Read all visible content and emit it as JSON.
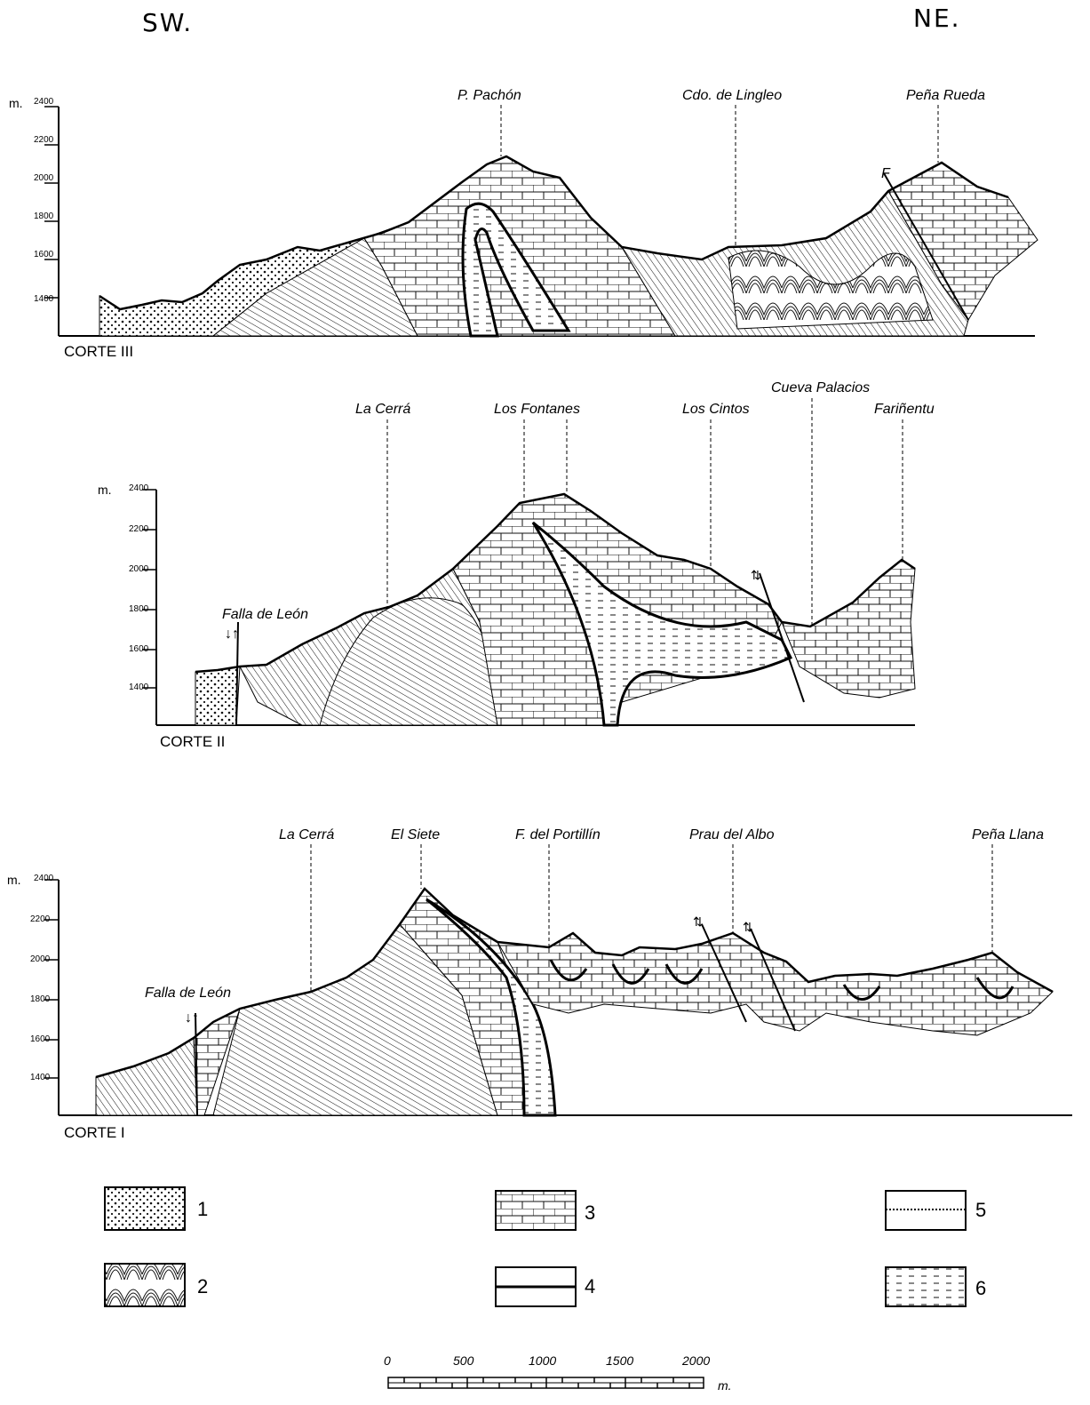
{
  "orientation": {
    "left": "SW.",
    "right": "NE."
  },
  "sections": [
    {
      "corte": "CORTE III",
      "unit": "m.",
      "ticks": [
        "2400",
        "2200",
        "2000",
        "1800",
        "1600",
        "1400"
      ],
      "peaks": [
        "P. Pachón",
        "Cdo. de Lingleo",
        "Peña Rueda"
      ],
      "fault_label": "F"
    },
    {
      "corte": "CORTE II",
      "unit": "m.",
      "ticks": [
        "2400",
        "2200",
        "2000",
        "1800",
        "1600",
        "1400"
      ],
      "peaks": [
        "La Cerrá",
        "Los Fontanes",
        "Los Cintos",
        "Cueva Palacios",
        "Fariñentu"
      ],
      "fault_label": "Falla de León"
    },
    {
      "corte": "CORTE I",
      "unit": "m.",
      "ticks": [
        "2400",
        "2200",
        "2000",
        "1800",
        "1600",
        "1400"
      ],
      "peaks": [
        "La Cerrá",
        "El Siete",
        "F. del Portillín",
        "Prau del Albo",
        "Peña Llana"
      ],
      "fault_label": "Falla de León"
    }
  ],
  "legend": [
    {
      "number": "1",
      "pattern": "conglomerate-dots"
    },
    {
      "number": "2",
      "pattern": "folded-lines"
    },
    {
      "number": "3",
      "pattern": "limestone-bricks"
    },
    {
      "number": "4",
      "pattern": "thick-line"
    },
    {
      "number": "5",
      "pattern": "dotted-line"
    },
    {
      "number": "6",
      "pattern": "dashed-shale"
    }
  ],
  "scale": {
    "labels": [
      "0",
      "500",
      "1000",
      "1500",
      "2000"
    ],
    "unit": "m."
  }
}
